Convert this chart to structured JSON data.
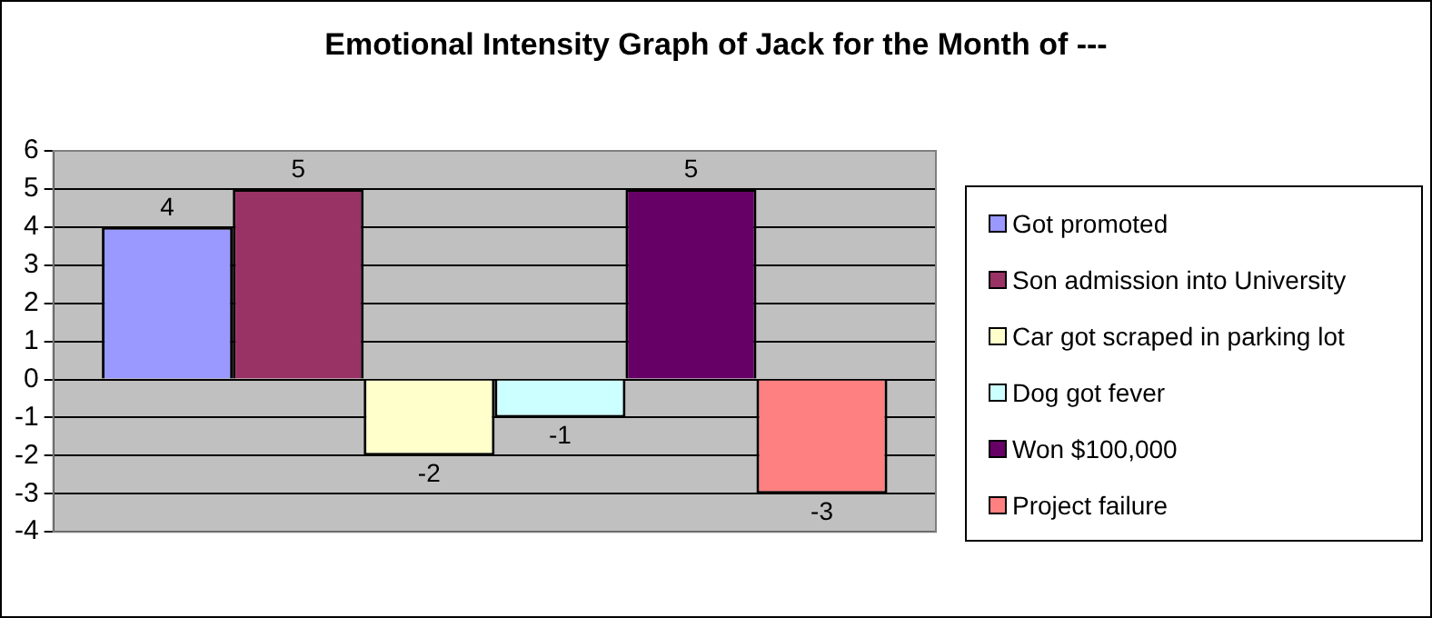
{
  "chart_data": {
    "type": "bar",
    "title": "Emotional Intensity Graph of Jack for the Month of ---",
    "categories": [
      null
    ],
    "series": [
      {
        "name": "Got promoted",
        "color": "#9999ff",
        "values": [
          4
        ]
      },
      {
        "name": "Son admission into University",
        "color": "#993366",
        "values": [
          5
        ]
      },
      {
        "name": "Car got scraped in parking lot",
        "color": "#ffffcc",
        "values": [
          -2
        ]
      },
      {
        "name": "Dog got fever",
        "color": "#ccffff",
        "values": [
          -1
        ]
      },
      {
        "name": "Won $100,000",
        "color": "#660066",
        "values": [
          5
        ]
      },
      {
        "name": "Project failure",
        "color": "#ff8080",
        "values": [
          -3
        ]
      }
    ],
    "ylim": [
      -4,
      6
    ],
    "yticks": [
      -4,
      -3,
      -2,
      -1,
      0,
      1,
      2,
      3,
      4,
      5,
      6
    ],
    "grid": "y",
    "legend": "right",
    "data_labels": true
  }
}
